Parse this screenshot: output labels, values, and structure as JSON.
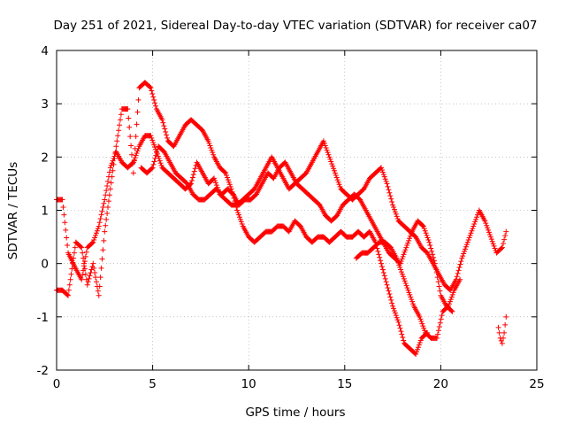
{
  "chart_data": {
    "type": "scatter",
    "title": "Day 251 of 2021, Sidereal Day-to-day VTEC variation (SDTVAR) for receiver ca07",
    "xlabel": "GPS time / hours",
    "ylabel": "SDTVAR / TECUs",
    "xlim": [
      0,
      25
    ],
    "ylim": [
      -2,
      4
    ],
    "xticks": [
      "0",
      "5",
      "10",
      "15",
      "20",
      "25"
    ],
    "yticks": [
      "-2",
      "-1",
      "0",
      "1",
      "2",
      "3",
      "4"
    ],
    "grid": true,
    "legend": "none",
    "marker": "plus",
    "color": "#ff0000",
    "series": [
      {
        "x": [
          0.0,
          0.3,
          0.6,
          1.0,
          1.3,
          1.6,
          1.9,
          2.2,
          2.5,
          2.8,
          3.1,
          3.4,
          3.7,
          4.0,
          4.3,
          4.6,
          4.9,
          5.2,
          5.5,
          5.8,
          6.1,
          6.4,
          6.7,
          7.0,
          7.3,
          7.6,
          7.9,
          8.2,
          8.5,
          8.8,
          9.1,
          9.4,
          9.7,
          10.0,
          10.3,
          10.6,
          10.9,
          11.2,
          11.5,
          11.8,
          12.1,
          12.4,
          12.7,
          13.0,
          13.3,
          13.6,
          13.9,
          14.2,
          14.5,
          14.8,
          15.1,
          15.4,
          15.7,
          16.0,
          16.3,
          16.6,
          16.9,
          17.2,
          17.5,
          17.8,
          18.1,
          18.4,
          18.7,
          19.0,
          19.3,
          19.6,
          19.9,
          20.2,
          20.5,
          20.8,
          21.1,
          21.4,
          21.7,
          22.0,
          22.3,
          22.6,
          22.9,
          23.2,
          23.4
        ],
        "y": [
          1.2,
          1.2,
          0.2,
          -0.1,
          -0.3,
          0.3,
          0.4,
          0.7,
          1.2,
          1.8,
          2.1,
          1.9,
          1.8,
          1.9,
          2.2,
          2.4,
          2.4,
          2.1,
          1.8,
          1.7,
          1.6,
          1.5,
          1.4,
          1.5,
          1.9,
          1.7,
          1.5,
          1.6,
          1.3,
          1.2,
          1.1,
          1.1,
          1.2,
          1.3,
          1.4,
          1.6,
          1.8,
          2.0,
          1.8,
          1.6,
          1.4,
          1.5,
          1.6,
          1.7,
          1.9,
          2.1,
          2.3,
          2.0,
          1.7,
          1.4,
          1.3,
          1.2,
          1.3,
          1.4,
          1.6,
          1.7,
          1.8,
          1.5,
          1.1,
          0.8,
          0.7,
          0.6,
          0.5,
          0.3,
          0.2,
          0.0,
          -0.2,
          -0.4,
          -0.5,
          -0.3,
          0.1,
          0.4,
          0.7,
          1.0,
          0.8,
          0.5,
          0.2,
          0.3,
          0.6
        ]
      },
      {
        "x": [
          0.0,
          0.3,
          0.6,
          1.0,
          1.3,
          1.6,
          1.9,
          2.2,
          2.5,
          2.8,
          3.1,
          3.4,
          3.7,
          4.0,
          4.3,
          4.6,
          4.9,
          5.2,
          5.5,
          5.8,
          6.1,
          6.4,
          6.7,
          7.0,
          7.3,
          7.6,
          7.9,
          8.2,
          8.5,
          8.8,
          9.1,
          9.4,
          9.7,
          10.0,
          10.3,
          10.6,
          10.9,
          11.2,
          11.5,
          11.8,
          12.1,
          12.4,
          12.7,
          13.0,
          13.3,
          13.6,
          13.9,
          14.2,
          14.5,
          14.8,
          15.1,
          15.4,
          15.7,
          16.0,
          16.3,
          16.6,
          16.9,
          17.2,
          17.5,
          17.8,
          18.1,
          18.4,
          18.7,
          19.0,
          19.3
        ],
        "y": [
          -0.5,
          -0.5,
          -0.6,
          0.4,
          0.3,
          -0.4,
          0.0,
          -0.6,
          0.6,
          1.4,
          2.2,
          2.9,
          2.9,
          1.7,
          3.3,
          3.4,
          3.3,
          2.9,
          2.7,
          2.3,
          2.2,
          2.4,
          2.6,
          2.7,
          2.6,
          2.5,
          2.3,
          2.0,
          1.8,
          1.7,
          1.4,
          1.0,
          0.7,
          0.5,
          0.4,
          0.5,
          0.6,
          0.6,
          0.7,
          0.7,
          0.6,
          0.8,
          0.7,
          0.5,
          0.4,
          0.5,
          0.5,
          0.4,
          0.5,
          0.6,
          0.5,
          0.5,
          0.6,
          0.5,
          0.6,
          0.4,
          0.0,
          -0.4,
          -0.8,
          -1.1,
          -1.5,
          -1.6,
          -1.7,
          -1.4,
          -1.3
        ]
      },
      {
        "x": [
          4.4,
          4.7,
          5.0,
          5.3,
          5.6,
          5.9,
          6.2,
          6.5,
          6.8,
          7.1,
          7.4,
          7.7,
          8.0,
          8.3,
          8.6,
          8.9,
          9.2,
          9.5,
          9.8,
          10.1,
          10.4,
          10.7,
          11.0,
          11.3,
          11.6,
          11.9,
          12.2,
          12.5,
          12.8,
          13.1,
          13.4,
          13.7,
          14.0,
          14.3,
          14.6,
          14.9,
          15.2,
          15.5,
          15.8,
          16.1,
          16.4,
          16.7,
          17.0,
          17.3,
          17.6,
          17.9,
          18.2,
          18.5,
          18.8,
          19.1,
          19.4,
          19.7,
          20.0,
          20.3,
          20.6
        ],
        "y": [
          1.8,
          1.7,
          1.8,
          2.2,
          2.1,
          1.9,
          1.7,
          1.6,
          1.5,
          1.3,
          1.2,
          1.2,
          1.3,
          1.4,
          1.3,
          1.4,
          1.3,
          1.1,
          1.2,
          1.2,
          1.3,
          1.5,
          1.7,
          1.6,
          1.8,
          1.9,
          1.7,
          1.5,
          1.4,
          1.3,
          1.2,
          1.1,
          0.9,
          0.8,
          0.9,
          1.1,
          1.2,
          1.3,
          1.2,
          1.0,
          0.8,
          0.6,
          0.4,
          0.2,
          0.1,
          0.0,
          0.3,
          0.6,
          0.8,
          0.7,
          0.4,
          0.0,
          -0.6,
          -0.8,
          -0.9
        ]
      },
      {
        "x": [
          15.6,
          15.9,
          16.2,
          16.5,
          16.8,
          17.1,
          17.4,
          17.7,
          18.0,
          18.3,
          18.6,
          18.9,
          19.2,
          19.5,
          19.8,
          20.1,
          20.4,
          20.7,
          21.0
        ],
        "y": [
          0.1,
          0.2,
          0.2,
          0.3,
          0.4,
          0.4,
          0.3,
          0.1,
          -0.2,
          -0.5,
          -0.8,
          -1.0,
          -1.3,
          -1.4,
          -1.4,
          -0.9,
          -0.8,
          -0.5,
          -0.3
        ]
      },
      {
        "x": [
          23.0,
          23.1,
          23.2,
          23.3,
          23.4
        ],
        "y": [
          -1.2,
          -1.4,
          -1.5,
          -1.3,
          -1.0
        ]
      }
    ]
  }
}
